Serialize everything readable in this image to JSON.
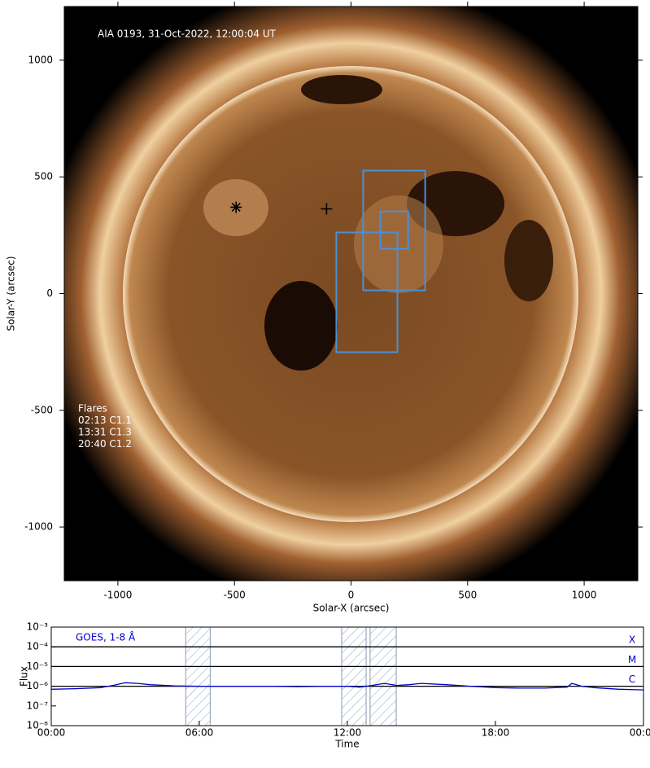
{
  "chart_data": [
    {
      "type": "image",
      "title": "AIA 0193, 31-Oct-2022, 12:00:04 UT",
      "xlabel": "Solar-X (arcsec)",
      "ylabel": "Solar-Y (arcsec)",
      "xlim": [
        -1230,
        1230
      ],
      "ylim": [
        -1230,
        1230
      ],
      "xticks": [
        -1000,
        -500,
        0,
        500,
        1000
      ],
      "yticks": [
        -1000,
        -500,
        0,
        500,
        1000
      ],
      "box_color": "#4a90d9",
      "boxes": [
        {
          "x": [
            52,
            318
          ],
          "y": [
            14,
            527
          ]
        },
        {
          "x": [
            126,
            245
          ],
          "y": [
            192,
            352
          ]
        },
        {
          "x": [
            -63,
            199
          ],
          "y": [
            -251,
            262
          ]
        }
      ],
      "markers": [
        {
          "x": -493,
          "y": 370,
          "symbol": "asterisk"
        },
        {
          "x": -105,
          "y": 363,
          "symbol": "plus"
        }
      ],
      "annotations": [
        "Flares",
        "02:13 C1.1",
        "13:31 C1.3",
        "20:40 C1.2"
      ]
    },
    {
      "type": "line",
      "title": "GOES, 1-8 Å",
      "xlabel": "Time",
      "ylabel": "Flux",
      "log_y": true,
      "xlim": [
        0,
        24
      ],
      "ylim": [
        1e-08,
        0.001
      ],
      "xticks": [
        {
          "value": 0,
          "label": "00:00"
        },
        {
          "value": 6,
          "label": "06:00"
        },
        {
          "value": 12,
          "label": "12:00"
        },
        {
          "value": 18,
          "label": "18:00"
        },
        {
          "value": 24,
          "label": "00:00"
        }
      ],
      "yticks": [
        {
          "value": 1e-08,
          "label": "10⁻⁸"
        },
        {
          "value": 1e-07,
          "label": "10⁻⁷"
        },
        {
          "value": 1e-06,
          "label": "10⁻⁶"
        },
        {
          "value": 1e-05,
          "label": "10⁻⁵"
        },
        {
          "value": 0.0001,
          "label": "10⁻⁴"
        },
        {
          "value": 0.001,
          "label": "10⁻³"
        }
      ],
      "thresholds": [
        {
          "value": 0.0001,
          "label": "X"
        },
        {
          "value": 1e-05,
          "label": "M"
        },
        {
          "value": 1e-06,
          "label": "C"
        }
      ],
      "spans": [
        [
          5.45,
          6.44
        ],
        [
          11.77,
          12.76
        ],
        [
          12.92,
          13.98
        ]
      ],
      "series": [
        {
          "color": "#0000cc",
          "x": [
            0,
            1,
            2,
            2.5,
            3,
            3.5,
            4,
            5,
            6,
            7,
            8,
            9,
            10,
            11,
            12,
            12.5,
            13,
            13.5,
            14,
            14.5,
            15,
            16,
            17,
            18,
            19,
            20,
            20.9,
            21.1,
            21.5,
            22,
            23,
            24
          ],
          "values": [
            7e-07,
            7.5e-07,
            8.5e-07,
            1.1e-06,
            1.5e-06,
            1.4e-06,
            1.2e-06,
            1.05e-06,
            1e-06,
            1e-06,
            1e-06,
            1e-06,
            9.5e-07,
            1e-06,
            1e-06,
            9e-07,
            1.1e-06,
            1.4e-06,
            1.1e-06,
            1.2e-06,
            1.4e-06,
            1.2e-06,
            1e-06,
            8.5e-07,
            8e-07,
            8e-07,
            9e-07,
            1.4e-06,
            1e-06,
            8.5e-07,
            7e-07,
            6.5e-07
          ]
        }
      ]
    }
  ]
}
